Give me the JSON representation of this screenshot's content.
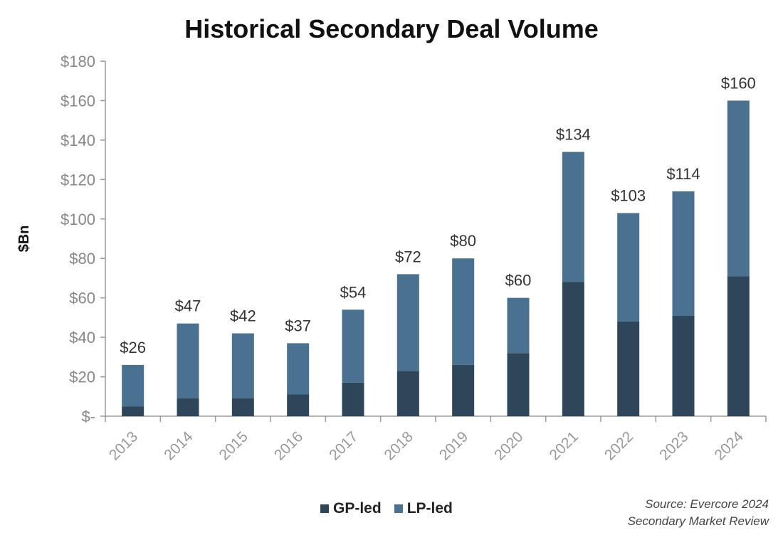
{
  "chart_data": {
    "type": "bar",
    "stacked": true,
    "title": "Historical Secondary Deal Volume",
    "xlabel": "",
    "ylabel": "$Bn",
    "ylim": [
      0,
      180
    ],
    "yticks": [
      "$-",
      "$20",
      "$40",
      "$60",
      "$80",
      "$100",
      "$120",
      "$140",
      "$160",
      "$180"
    ],
    "categories": [
      "2013",
      "2014",
      "2015",
      "2016",
      "2017",
      "2018",
      "2019",
      "2020",
      "2021",
      "2022",
      "2023",
      "2024"
    ],
    "series": [
      {
        "name": "GP-led",
        "color": "#2e4659",
        "values": [
          5,
          9,
          9,
          11,
          17,
          23,
          26,
          32,
          68,
          48,
          51,
          71
        ]
      },
      {
        "name": "LP-led",
        "color": "#4a7190",
        "values": [
          21,
          38,
          33,
          26,
          37,
          49,
          54,
          28,
          66,
          55,
          63,
          89
        ]
      }
    ],
    "totals": [
      26,
      47,
      42,
      37,
      54,
      72,
      80,
      60,
      134,
      103,
      114,
      160
    ],
    "total_labels": [
      "$26",
      "$47",
      "$42",
      "$37",
      "$54",
      "$72",
      "$80",
      "$60",
      "$134",
      "$103",
      "$114",
      "$160"
    ],
    "grid": false,
    "legend": "bottom"
  },
  "source": {
    "line1": "Source: Evercore 2024",
    "line2": "Secondary Market Review"
  }
}
